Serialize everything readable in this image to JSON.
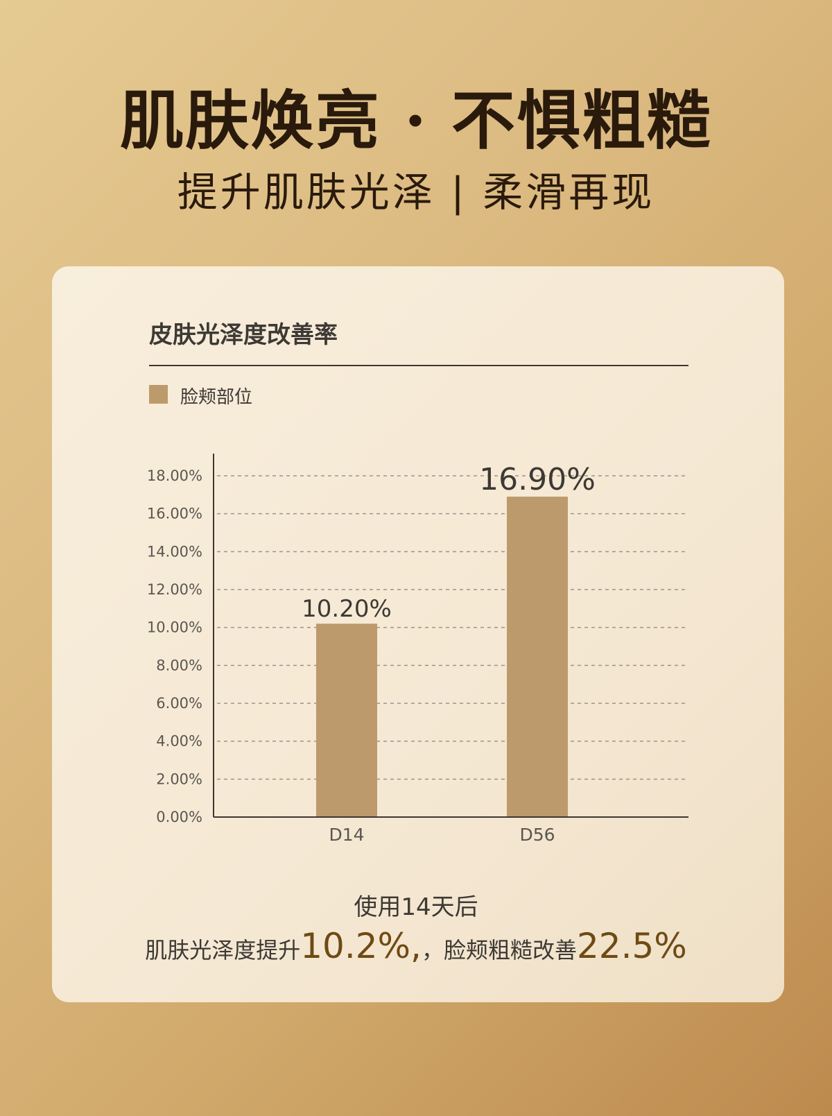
{
  "header": {
    "title": "肌肤焕亮 · 不惧粗糙",
    "subtitle": "提升肌肤光泽 | 柔滑再现"
  },
  "colors": {
    "bar": "#bd9a6c",
    "accent": "#6e4a14",
    "text": "#3d3934"
  },
  "chart_data": {
    "type": "bar",
    "title": "皮肤光泽度改善率",
    "legend": [
      "脸颊部位"
    ],
    "categories": [
      "D14",
      "D56"
    ],
    "series": [
      {
        "name": "脸颊部位",
        "values": [
          10.2,
          16.9
        ],
        "labels": [
          "10.20%",
          "16.90%"
        ]
      }
    ],
    "ylim": [
      0,
      18
    ],
    "yticks": [
      "0.00%",
      "2.00%",
      "4.00%",
      "6.00%",
      "8.00%",
      "10.00%",
      "12.00%",
      "14.00%",
      "16.00%",
      "18.00%"
    ],
    "grid": true,
    "legend_placement": "top-left"
  },
  "footer": {
    "line1": "使用14天后",
    "line2_a": "肌肤光泽度提升",
    "line2_v1": "10.2%,",
    "line2_b": "，脸颊粗糙改善",
    "line2_v2": "22.5%"
  }
}
